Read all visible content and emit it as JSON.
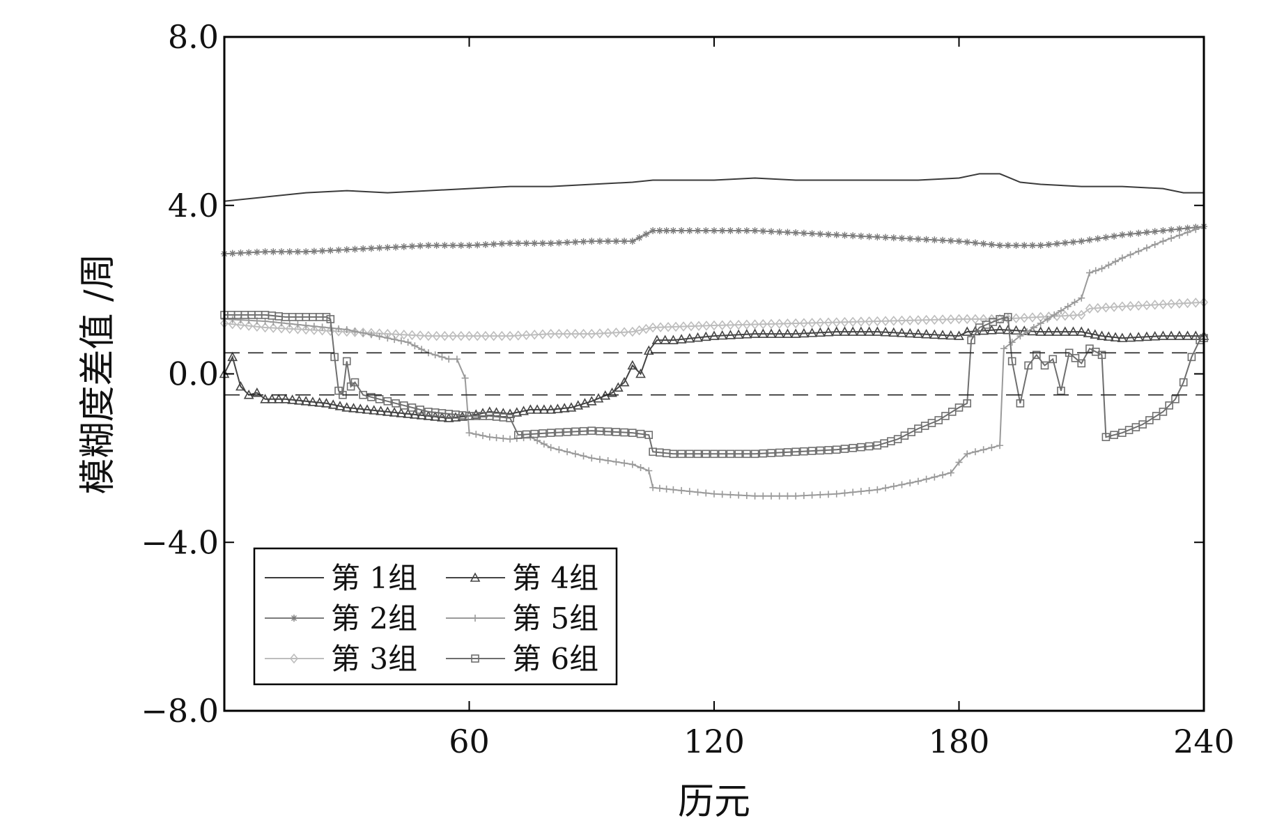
{
  "chart_data": {
    "type": "line",
    "title": "",
    "xlabel": "历元",
    "ylabel": "模糊度差值 /周",
    "xlim": [
      0,
      240
    ],
    "ylim": [
      -8,
      8
    ],
    "xticks": [
      60,
      120,
      180,
      240
    ],
    "xtick_labels": [
      "60",
      "120",
      "180",
      "240"
    ],
    "yticks": [
      -8,
      -4,
      0,
      4,
      8
    ],
    "ytick_labels": [
      "−8.0",
      "−4.0",
      "0.0",
      "4.0",
      "8.0"
    ],
    "grid": false,
    "legend_position": "lower-left",
    "reference_lines": [
      0.5,
      -0.5
    ],
    "series": [
      {
        "name": "第 1组",
        "marker": "none",
        "color": "#3a3a3a",
        "points": [
          [
            0,
            4.1
          ],
          [
            10,
            4.2
          ],
          [
            20,
            4.3
          ],
          [
            30,
            4.35
          ],
          [
            40,
            4.3
          ],
          [
            50,
            4.35
          ],
          [
            60,
            4.4
          ],
          [
            70,
            4.45
          ],
          [
            80,
            4.45
          ],
          [
            90,
            4.5
          ],
          [
            100,
            4.55
          ],
          [
            105,
            4.6
          ],
          [
            110,
            4.6
          ],
          [
            120,
            4.6
          ],
          [
            130,
            4.65
          ],
          [
            140,
            4.6
          ],
          [
            150,
            4.6
          ],
          [
            160,
            4.6
          ],
          [
            170,
            4.6
          ],
          [
            180,
            4.65
          ],
          [
            185,
            4.75
          ],
          [
            190,
            4.75
          ],
          [
            195,
            4.55
          ],
          [
            200,
            4.5
          ],
          [
            210,
            4.45
          ],
          [
            220,
            4.45
          ],
          [
            230,
            4.4
          ],
          [
            235,
            4.3
          ],
          [
            240,
            4.3
          ]
        ]
      },
      {
        "name": "第 2组",
        "marker": "star",
        "color": "#7a7a7a",
        "points": [
          [
            0,
            2.85
          ],
          [
            10,
            2.9
          ],
          [
            20,
            2.9
          ],
          [
            30,
            2.95
          ],
          [
            40,
            3.0
          ],
          [
            50,
            3.05
          ],
          [
            60,
            3.05
          ],
          [
            70,
            3.1
          ],
          [
            80,
            3.1
          ],
          [
            90,
            3.15
          ],
          [
            100,
            3.15
          ],
          [
            105,
            3.4
          ],
          [
            110,
            3.4
          ],
          [
            120,
            3.4
          ],
          [
            130,
            3.4
          ],
          [
            140,
            3.35
          ],
          [
            150,
            3.3
          ],
          [
            160,
            3.25
          ],
          [
            170,
            3.2
          ],
          [
            180,
            3.15
          ],
          [
            190,
            3.05
          ],
          [
            200,
            3.05
          ],
          [
            210,
            3.15
          ],
          [
            220,
            3.3
          ],
          [
            230,
            3.4
          ],
          [
            240,
            3.5
          ]
        ]
      },
      {
        "name": "第 3组",
        "marker": "diamond",
        "color": "#bdbdbd",
        "points": [
          [
            0,
            1.2
          ],
          [
            10,
            1.1
          ],
          [
            20,
            1.05
          ],
          [
            30,
            1.0
          ],
          [
            40,
            0.95
          ],
          [
            50,
            0.9
          ],
          [
            60,
            0.9
          ],
          [
            70,
            0.9
          ],
          [
            80,
            0.95
          ],
          [
            90,
            0.95
          ],
          [
            100,
            1.0
          ],
          [
            105,
            1.1
          ],
          [
            120,
            1.15
          ],
          [
            140,
            1.2
          ],
          [
            160,
            1.25
          ],
          [
            180,
            1.3
          ],
          [
            190,
            1.3
          ],
          [
            200,
            1.35
          ],
          [
            210,
            1.4
          ],
          [
            212,
            1.55
          ],
          [
            220,
            1.6
          ],
          [
            230,
            1.65
          ],
          [
            240,
            1.7
          ]
        ]
      },
      {
        "name": "第 4组",
        "marker": "triangle",
        "color": "#444444",
        "points": [
          [
            0,
            0.0
          ],
          [
            2,
            0.4
          ],
          [
            4,
            -0.3
          ],
          [
            6,
            -0.5
          ],
          [
            8,
            -0.45
          ],
          [
            10,
            -0.6
          ],
          [
            15,
            -0.6
          ],
          [
            20,
            -0.65
          ],
          [
            25,
            -0.7
          ],
          [
            30,
            -0.8
          ],
          [
            35,
            -0.85
          ],
          [
            40,
            -0.9
          ],
          [
            45,
            -0.95
          ],
          [
            50,
            -1.0
          ],
          [
            55,
            -1.05
          ],
          [
            60,
            -1.0
          ],
          [
            65,
            -0.9
          ],
          [
            70,
            -0.95
          ],
          [
            75,
            -0.85
          ],
          [
            80,
            -0.85
          ],
          [
            85,
            -0.8
          ],
          [
            90,
            -0.65
          ],
          [
            95,
            -0.45
          ],
          [
            98,
            -0.2
          ],
          [
            100,
            0.2
          ],
          [
            102,
            0.0
          ],
          [
            104,
            0.55
          ],
          [
            106,
            0.8
          ],
          [
            110,
            0.8
          ],
          [
            120,
            0.9
          ],
          [
            130,
            0.95
          ],
          [
            140,
            0.95
          ],
          [
            150,
            1.0
          ],
          [
            160,
            1.0
          ],
          [
            170,
            0.95
          ],
          [
            180,
            0.9
          ],
          [
            182,
            1.0
          ],
          [
            190,
            1.05
          ],
          [
            200,
            1.0
          ],
          [
            210,
            1.0
          ],
          [
            215,
            0.9
          ],
          [
            220,
            0.85
          ],
          [
            230,
            0.9
          ],
          [
            240,
            0.9
          ]
        ]
      },
      {
        "name": "第 5组",
        "marker": "plus",
        "color": "#9a9a9a",
        "points": [
          [
            0,
            1.3
          ],
          [
            10,
            1.25
          ],
          [
            20,
            1.15
          ],
          [
            30,
            1.05
          ],
          [
            40,
            0.85
          ],
          [
            45,
            0.75
          ],
          [
            50,
            0.5
          ],
          [
            55,
            0.35
          ],
          [
            57,
            0.35
          ],
          [
            59,
            -0.1
          ],
          [
            60,
            -1.4
          ],
          [
            65,
            -1.5
          ],
          [
            70,
            -1.55
          ],
          [
            75,
            -1.5
          ],
          [
            80,
            -1.75
          ],
          [
            90,
            -2.0
          ],
          [
            100,
            -2.15
          ],
          [
            104,
            -2.3
          ],
          [
            105,
            -2.7
          ],
          [
            110,
            -2.75
          ],
          [
            120,
            -2.85
          ],
          [
            130,
            -2.9
          ],
          [
            140,
            -2.9
          ],
          [
            150,
            -2.85
          ],
          [
            160,
            -2.75
          ],
          [
            170,
            -2.55
          ],
          [
            178,
            -2.35
          ],
          [
            180,
            -2.1
          ],
          [
            182,
            -1.9
          ],
          [
            188,
            -1.75
          ],
          [
            190,
            -1.7
          ],
          [
            191,
            0.6
          ],
          [
            195,
            0.9
          ],
          [
            200,
            1.2
          ],
          [
            205,
            1.5
          ],
          [
            210,
            1.8
          ],
          [
            212,
            2.4
          ],
          [
            215,
            2.5
          ],
          [
            220,
            2.75
          ],
          [
            230,
            3.15
          ],
          [
            240,
            3.5
          ]
        ]
      },
      {
        "name": "第 6组",
        "marker": "square",
        "color": "#6e6e6e",
        "points": [
          [
            0,
            1.4
          ],
          [
            5,
            1.4
          ],
          [
            10,
            1.4
          ],
          [
            15,
            1.35
          ],
          [
            20,
            1.35
          ],
          [
            25,
            1.35
          ],
          [
            26,
            1.3
          ],
          [
            27,
            0.4
          ],
          [
            28,
            -0.4
          ],
          [
            29,
            -0.5
          ],
          [
            30,
            0.3
          ],
          [
            31,
            -0.3
          ],
          [
            32,
            -0.2
          ],
          [
            34,
            -0.5
          ],
          [
            38,
            -0.6
          ],
          [
            42,
            -0.7
          ],
          [
            46,
            -0.8
          ],
          [
            50,
            -0.9
          ],
          [
            55,
            -0.95
          ],
          [
            60,
            -1.0
          ],
          [
            65,
            -1.0
          ],
          [
            70,
            -1.05
          ],
          [
            72,
            -1.45
          ],
          [
            80,
            -1.4
          ],
          [
            90,
            -1.35
          ],
          [
            100,
            -1.4
          ],
          [
            104,
            -1.45
          ],
          [
            105,
            -1.85
          ],
          [
            110,
            -1.9
          ],
          [
            120,
            -1.9
          ],
          [
            130,
            -1.9
          ],
          [
            140,
            -1.85
          ],
          [
            150,
            -1.8
          ],
          [
            160,
            -1.7
          ],
          [
            165,
            -1.55
          ],
          [
            170,
            -1.3
          ],
          [
            175,
            -1.1
          ],
          [
            180,
            -0.8
          ],
          [
            182,
            -0.7
          ],
          [
            183,
            0.8
          ],
          [
            185,
            1.1
          ],
          [
            190,
            1.3
          ],
          [
            192,
            1.35
          ],
          [
            193,
            0.3
          ],
          [
            195,
            -0.7
          ],
          [
            197,
            0.2
          ],
          [
            199,
            0.45
          ],
          [
            201,
            0.2
          ],
          [
            203,
            0.35
          ],
          [
            205,
            -0.4
          ],
          [
            207,
            0.5
          ],
          [
            210,
            0.25
          ],
          [
            212,
            0.6
          ],
          [
            215,
            0.45
          ],
          [
            216,
            -1.5
          ],
          [
            220,
            -1.4
          ],
          [
            225,
            -1.2
          ],
          [
            230,
            -0.9
          ],
          [
            233,
            -0.6
          ],
          [
            235,
            -0.2
          ],
          [
            237,
            0.4
          ],
          [
            239,
            0.8
          ],
          [
            240,
            0.85
          ]
        ]
      }
    ]
  }
}
